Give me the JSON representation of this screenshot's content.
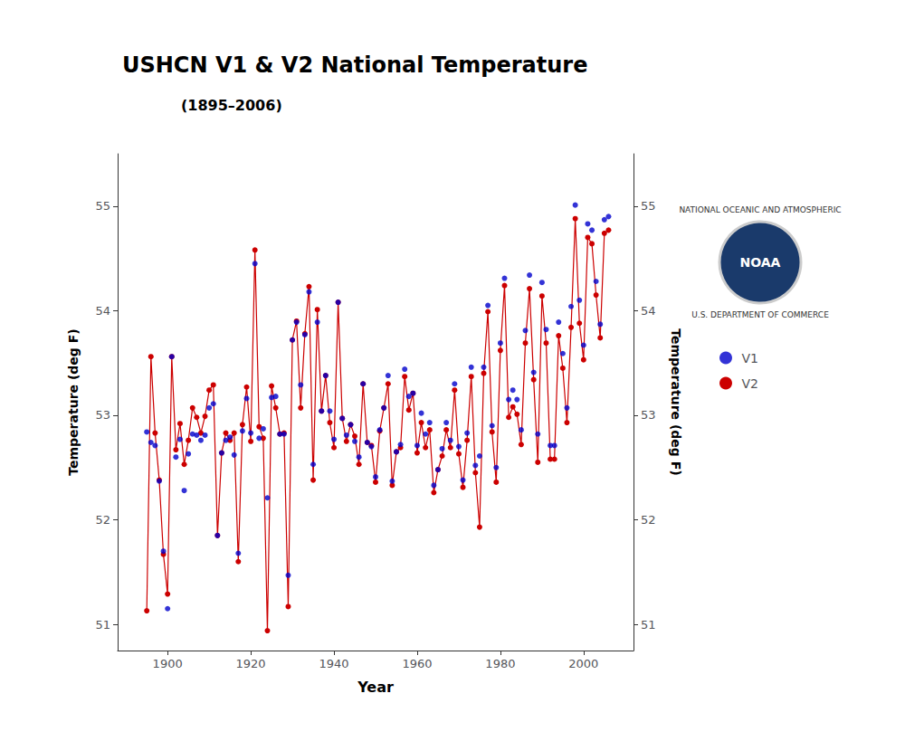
{
  "chart_data": {
    "type": "scatter",
    "title": "USHCN V1 & V2 National Temperature",
    "subtitle": "(1895–2006)",
    "xlabel": "Year",
    "ylabel": "Temperature (deg F)",
    "y2label": "Temperature (deg F)",
    "annotations": [
      "NOAA",
      "NATIONAL OCEANIC AND ATMOSPHERIC",
      "U.S. DEPARTMENT OF COMMERCE"
    ],
    "xlim": [
      1888,
      2012
    ],
    "xticks": [
      1900,
      1920,
      1940,
      1960,
      1980,
      2000
    ],
    "ylim": [
      50.75,
      55.5
    ],
    "yticks": [
      51,
      52,
      53,
      54,
      55
    ],
    "y2lim": [
      50.75,
      55.5
    ],
    "y2ticks": [
      51,
      52,
      53,
      54,
      55
    ],
    "grid": false,
    "legend": "right",
    "x": [
      1895,
      1896,
      1897,
      1898,
      1899,
      1900,
      1901,
      1902,
      1903,
      1904,
      1905,
      1906,
      1907,
      1908,
      1909,
      1910,
      1911,
      1912,
      1913,
      1914,
      1915,
      1916,
      1917,
      1918,
      1919,
      1920,
      1921,
      1922,
      1923,
      1924,
      1925,
      1926,
      1927,
      1928,
      1929,
      1930,
      1931,
      1932,
      1933,
      1934,
      1935,
      1936,
      1937,
      1938,
      1939,
      1940,
      1941,
      1942,
      1943,
      1944,
      1945,
      1946,
      1947,
      1948,
      1949,
      1950,
      1951,
      1952,
      1953,
      1954,
      1955,
      1956,
      1957,
      1958,
      1959,
      1960,
      1961,
      1962,
      1963,
      1964,
      1965,
      1966,
      1967,
      1968,
      1969,
      1970,
      1971,
      1972,
      1973,
      1974,
      1975,
      1976,
      1977,
      1978,
      1979,
      1980,
      1981,
      1982,
      1983,
      1984,
      1985,
      1986,
      1987,
      1988,
      1989,
      1990,
      1991,
      1992,
      1993,
      1994,
      1995,
      1996,
      1997,
      1998,
      1999,
      2000,
      2001,
      2002,
      2003,
      2004,
      2005,
      2006
    ],
    "series": [
      {
        "name": "V1",
        "type": "scatter",
        "marker": "circle",
        "color": "#0000cc",
        "values": [
          52.84,
          52.74,
          52.71,
          52.37,
          51.7,
          51.15,
          53.56,
          52.6,
          52.77,
          52.28,
          52.63,
          52.82,
          52.81,
          52.76,
          52.81,
          53.07,
          53.11,
          51.85,
          52.64,
          52.76,
          52.79,
          52.62,
          51.68,
          52.85,
          53.16,
          52.83,
          54.45,
          52.78,
          52.87,
          52.21,
          53.17,
          53.18,
          52.82,
          52.82,
          51.47,
          53.72,
          53.89,
          53.29,
          53.77,
          54.18,
          52.53,
          53.89,
          53.04,
          53.38,
          53.04,
          52.77,
          54.08,
          52.97,
          52.81,
          52.91,
          52.75,
          52.6,
          53.3,
          52.74,
          52.7,
          52.41,
          52.86,
          53.07,
          53.38,
          52.37,
          52.65,
          52.72,
          53.44,
          53.18,
          53.21,
          52.71,
          53.02,
          52.82,
          52.93,
          52.33,
          52.48,
          52.68,
          52.93,
          52.76,
          53.3,
          52.7,
          52.38,
          52.83,
          53.46,
          52.52,
          52.61,
          53.46,
          54.05,
          52.9,
          52.5,
          53.69,
          54.31,
          53.15,
          53.24,
          53.15,
          52.86,
          53.81,
          54.34,
          53.41,
          52.82,
          54.27,
          53.82,
          52.71,
          52.71,
          53.89,
          53.59,
          53.07,
          54.04,
          55.01,
          54.1,
          53.67,
          54.83,
          54.77,
          54.28,
          53.87,
          54.87,
          54.9
        ]
      },
      {
        "name": "V2",
        "type": "line",
        "marker": "circle",
        "line_style": "solid",
        "color": "#cc0000",
        "values": [
          51.13,
          53.56,
          52.83,
          52.38,
          51.67,
          51.29,
          53.56,
          52.67,
          52.92,
          52.53,
          52.76,
          53.07,
          52.98,
          52.83,
          52.99,
          53.24,
          53.29,
          51.85,
          52.64,
          52.83,
          52.76,
          52.83,
          51.6,
          52.91,
          53.27,
          52.75,
          54.58,
          52.89,
          52.78,
          50.94,
          53.28,
          53.07,
          52.82,
          52.83,
          51.17,
          53.72,
          53.9,
          53.07,
          53.78,
          54.23,
          52.38,
          54.01,
          53.04,
          53.38,
          52.93,
          52.69,
          54.08,
          52.97,
          52.75,
          52.91,
          52.8,
          52.53,
          53.3,
          52.74,
          52.71,
          52.36,
          52.85,
          53.07,
          53.3,
          52.33,
          52.65,
          52.69,
          53.37,
          53.05,
          53.21,
          52.64,
          52.93,
          52.69,
          52.86,
          52.26,
          52.48,
          52.61,
          52.86,
          52.69,
          53.24,
          52.63,
          52.31,
          52.76,
          53.37,
          52.45,
          51.93,
          53.4,
          53.99,
          52.84,
          52.36,
          53.62,
          54.24,
          52.98,
          53.08,
          53.01,
          52.72,
          53.69,
          54.21,
          53.34,
          52.55,
          54.14,
          53.69,
          52.58,
          52.58,
          53.76,
          53.45,
          52.93,
          53.84,
          54.88,
          53.88,
          53.53,
          54.7,
          54.64,
          54.15,
          53.74,
          54.74,
          54.77
        ]
      }
    ]
  }
}
